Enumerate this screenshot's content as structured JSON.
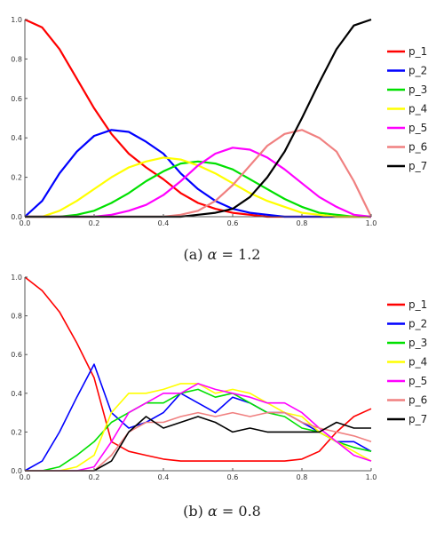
{
  "figure": {
    "captions": [
      {
        "label": "(a)",
        "symbol": "α",
        "eq": "= 1.2"
      },
      {
        "label": "(b)",
        "symbol": "α",
        "eq": "= 0.8"
      }
    ]
  },
  "chart_data": [
    {
      "type": "line",
      "xlim": [
        0,
        1
      ],
      "ylim": [
        0,
        1
      ],
      "xticks": [
        "0.0",
        "0.2",
        "0.4",
        "0.6",
        "0.8",
        "1.0"
      ],
      "yticks": [
        "0.0",
        "0.2",
        "0.4",
        "0.6",
        "0.8",
        "1.0"
      ],
      "legend_position": "right",
      "x": [
        0,
        0.05,
        0.1,
        0.15,
        0.2,
        0.25,
        0.3,
        0.35,
        0.4,
        0.45,
        0.5,
        0.55,
        0.6,
        0.65,
        0.7,
        0.75,
        0.8,
        0.85,
        0.9,
        0.95,
        1.0
      ],
      "series": [
        {
          "name": "p_1",
          "color": "#ff0000",
          "values": [
            1.0,
            0.96,
            0.85,
            0.7,
            0.55,
            0.42,
            0.32,
            0.25,
            0.19,
            0.12,
            0.07,
            0.04,
            0.02,
            0.01,
            0.0,
            0.0,
            0.0,
            0.0,
            0.0,
            0.0,
            0.0
          ]
        },
        {
          "name": "p_2",
          "color": "#0000ff",
          "values": [
            0.0,
            0.08,
            0.22,
            0.33,
            0.41,
            0.44,
            0.43,
            0.38,
            0.32,
            0.22,
            0.14,
            0.08,
            0.04,
            0.02,
            0.01,
            0.0,
            0.0,
            0.0,
            0.0,
            0.0,
            0.0
          ]
        },
        {
          "name": "p_3",
          "color": "#00e000",
          "values": [
            0.0,
            0.0,
            0.0,
            0.01,
            0.03,
            0.07,
            0.12,
            0.18,
            0.23,
            0.27,
            0.28,
            0.27,
            0.24,
            0.19,
            0.14,
            0.09,
            0.05,
            0.02,
            0.01,
            0.0,
            0.0
          ]
        },
        {
          "name": "p_4",
          "color": "#ffff00",
          "values": [
            0.0,
            0.0,
            0.03,
            0.08,
            0.14,
            0.2,
            0.25,
            0.28,
            0.3,
            0.29,
            0.26,
            0.22,
            0.17,
            0.12,
            0.08,
            0.05,
            0.02,
            0.01,
            0.0,
            0.0,
            0.0
          ]
        },
        {
          "name": "p_5",
          "color": "#ff00ff",
          "values": [
            0.0,
            0.0,
            0.0,
            0.0,
            0.0,
            0.01,
            0.03,
            0.06,
            0.11,
            0.18,
            0.26,
            0.32,
            0.35,
            0.34,
            0.3,
            0.24,
            0.17,
            0.1,
            0.05,
            0.01,
            0.0
          ]
        },
        {
          "name": "p_6",
          "color": "#f08080",
          "values": [
            0.0,
            0.0,
            0.0,
            0.0,
            0.0,
            0.0,
            0.0,
            0.0,
            0.0,
            0.01,
            0.03,
            0.08,
            0.16,
            0.26,
            0.36,
            0.42,
            0.44,
            0.4,
            0.33,
            0.18,
            0.0
          ]
        },
        {
          "name": "p_7",
          "color": "#000000",
          "values": [
            0.0,
            0.0,
            0.0,
            0.0,
            0.0,
            0.0,
            0.0,
            0.0,
            0.0,
            0.0,
            0.01,
            0.02,
            0.04,
            0.1,
            0.2,
            0.33,
            0.5,
            0.68,
            0.85,
            0.97,
            1.0
          ]
        }
      ]
    },
    {
      "type": "line",
      "xlim": [
        0,
        1
      ],
      "ylim": [
        0,
        1
      ],
      "xticks": [
        "0.0",
        "0.2",
        "0.4",
        "0.6",
        "0.8",
        "1.0"
      ],
      "yticks": [
        "0.0",
        "0.2",
        "0.4",
        "0.6",
        "0.8",
        "1.0"
      ],
      "legend_position": "right",
      "x": [
        0,
        0.05,
        0.1,
        0.15,
        0.2,
        0.25,
        0.3,
        0.35,
        0.4,
        0.45,
        0.5,
        0.55,
        0.6,
        0.65,
        0.7,
        0.75,
        0.8,
        0.85,
        0.9,
        0.95,
        1.0
      ],
      "series": [
        {
          "name": "p_1",
          "color": "#ff0000",
          "values": [
            1.0,
            0.93,
            0.82,
            0.66,
            0.48,
            0.15,
            0.1,
            0.08,
            0.06,
            0.05,
            0.05,
            0.05,
            0.05,
            0.05,
            0.05,
            0.05,
            0.06,
            0.1,
            0.2,
            0.28,
            0.32
          ]
        },
        {
          "name": "p_2",
          "color": "#0000ff",
          "values": [
            0.0,
            0.05,
            0.2,
            0.38,
            0.55,
            0.3,
            0.22,
            0.25,
            0.3,
            0.4,
            0.35,
            0.3,
            0.38,
            0.35,
            0.3,
            0.3,
            0.25,
            0.2,
            0.15,
            0.15,
            0.1
          ]
        },
        {
          "name": "p_3",
          "color": "#00e000",
          "values": [
            0.0,
            0.0,
            0.02,
            0.08,
            0.15,
            0.25,
            0.3,
            0.35,
            0.35,
            0.4,
            0.42,
            0.38,
            0.4,
            0.35,
            0.3,
            0.28,
            0.22,
            0.2,
            0.15,
            0.12,
            0.1
          ]
        },
        {
          "name": "p_4",
          "color": "#ffff00",
          "values": [
            0.0,
            0.0,
            0.0,
            0.02,
            0.08,
            0.3,
            0.4,
            0.4,
            0.42,
            0.45,
            0.45,
            0.4,
            0.42,
            0.4,
            0.35,
            0.3,
            0.28,
            0.2,
            0.15,
            0.1,
            0.05
          ]
        },
        {
          "name": "p_5",
          "color": "#ff00ff",
          "values": [
            0.0,
            0.0,
            0.0,
            0.0,
            0.02,
            0.15,
            0.3,
            0.35,
            0.4,
            0.4,
            0.45,
            0.42,
            0.4,
            0.38,
            0.35,
            0.35,
            0.3,
            0.22,
            0.15,
            0.08,
            0.05
          ]
        },
        {
          "name": "p_6",
          "color": "#f08080",
          "values": [
            0.0,
            0.0,
            0.0,
            0.0,
            0.0,
            0.08,
            0.2,
            0.25,
            0.25,
            0.28,
            0.3,
            0.28,
            0.3,
            0.28,
            0.3,
            0.3,
            0.25,
            0.22,
            0.2,
            0.18,
            0.15
          ]
        },
        {
          "name": "p_7",
          "color": "#000000",
          "values": [
            0.0,
            0.0,
            0.0,
            0.0,
            0.0,
            0.05,
            0.2,
            0.28,
            0.22,
            0.25,
            0.28,
            0.25,
            0.2,
            0.22,
            0.2,
            0.2,
            0.2,
            0.2,
            0.25,
            0.22,
            0.22
          ]
        }
      ]
    }
  ]
}
